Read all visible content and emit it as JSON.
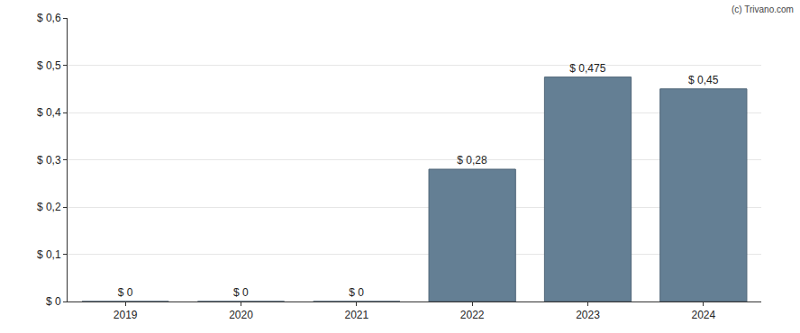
{
  "chart_data": {
    "type": "bar",
    "categories": [
      "2019",
      "2020",
      "2021",
      "2022",
      "2023",
      "2024"
    ],
    "values": [
      0,
      0,
      0,
      0.28,
      0.475,
      0.45
    ],
    "value_labels": [
      "$ 0",
      "$ 0",
      "$ 0",
      "$ 0,28",
      "$ 0,475",
      "$ 0,45"
    ],
    "data_labels": true,
    "color": "#647f94",
    "ylim": [
      0,
      0.6
    ],
    "yticks": [
      {
        "value": 0,
        "label": "$ 0"
      },
      {
        "value": 0.1,
        "label": "$ 0,1"
      },
      {
        "value": 0.2,
        "label": "$ 0,2"
      },
      {
        "value": 0.3,
        "label": "$ 0,3"
      },
      {
        "value": 0.4,
        "label": "$ 0,4"
      },
      {
        "value": 0.5,
        "label": "$ 0,5"
      },
      {
        "value": 0.6,
        "label": "$ 0,6"
      }
    ],
    "grid": true,
    "annotations": [
      "(c) Trivano.com"
    ]
  }
}
